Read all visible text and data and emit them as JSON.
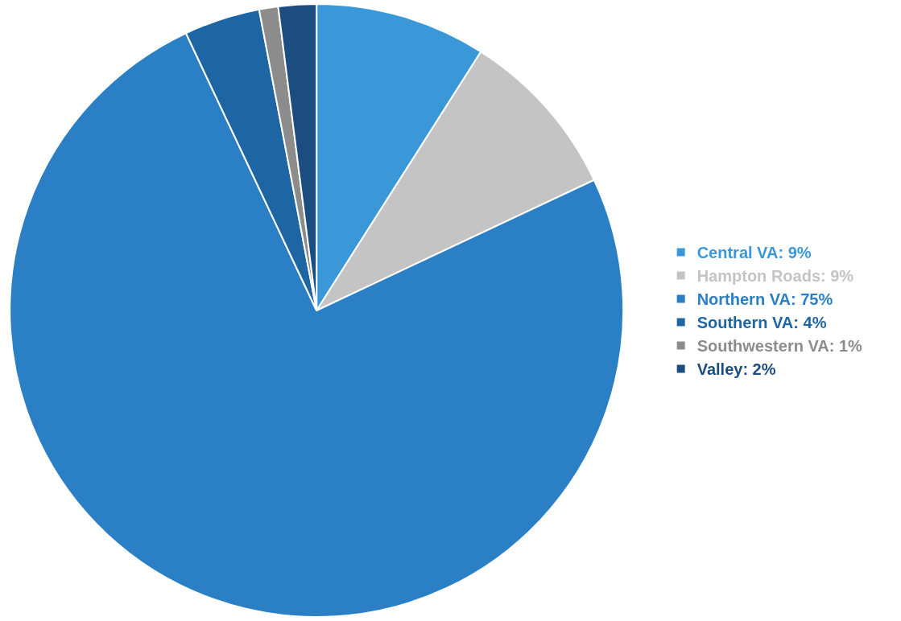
{
  "chart_data": {
    "type": "pie",
    "categories": [
      "Central VA",
      "Hampton Roads",
      "Northern VA",
      "Southern VA",
      "Southwestern VA",
      "Valley"
    ],
    "values": [
      9,
      9,
      75,
      4,
      1,
      2
    ],
    "value_labels": [
      "9%",
      "9%",
      "75%",
      "4%",
      "1%",
      "2%"
    ],
    "colors": [
      "#3a98d8",
      "#c4c4c4",
      "#2b80c5",
      "#1e66a3",
      "#8c8c8c",
      "#1c4d80"
    ],
    "legend": "right"
  }
}
